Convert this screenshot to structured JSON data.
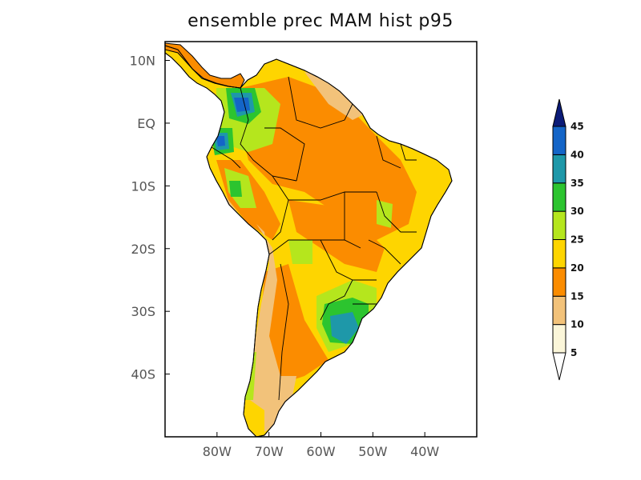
{
  "title": "ensemble prec MAM hist p95",
  "map": {
    "lon_range": [
      -90,
      -30
    ],
    "lat_range": [
      -50,
      13
    ],
    "projection": "cylindrical",
    "x_ticks": [
      {
        "lon": -80,
        "label": "80W"
      },
      {
        "lon": -70,
        "label": "70W"
      },
      {
        "lon": -60,
        "label": "60W"
      },
      {
        "lon": -50,
        "label": "50W"
      },
      {
        "lon": -40,
        "label": "40W"
      }
    ],
    "y_ticks": [
      {
        "lat": 10,
        "label": "10N"
      },
      {
        "lat": 0,
        "label": "EQ"
      },
      {
        "lat": -10,
        "label": "10S"
      },
      {
        "lat": -20,
        "label": "20S"
      },
      {
        "lat": -30,
        "label": "30S"
      },
      {
        "lat": -40,
        "label": "40S"
      }
    ],
    "ocean_color": "#ffffff",
    "coast_color": "#000000"
  },
  "colorbar": {
    "labels": [
      "5",
      "10",
      "15",
      "20",
      "25",
      "30",
      "35",
      "40",
      "45"
    ],
    "colors": [
      "#fbf6d9",
      "#f2c27a",
      "#fb8c00",
      "#fed500",
      "#b5e61d",
      "#2cc42f",
      "#1e98a9",
      "#1465c8",
      "#0b1b78"
    ],
    "under_color": "#ffffff"
  }
}
